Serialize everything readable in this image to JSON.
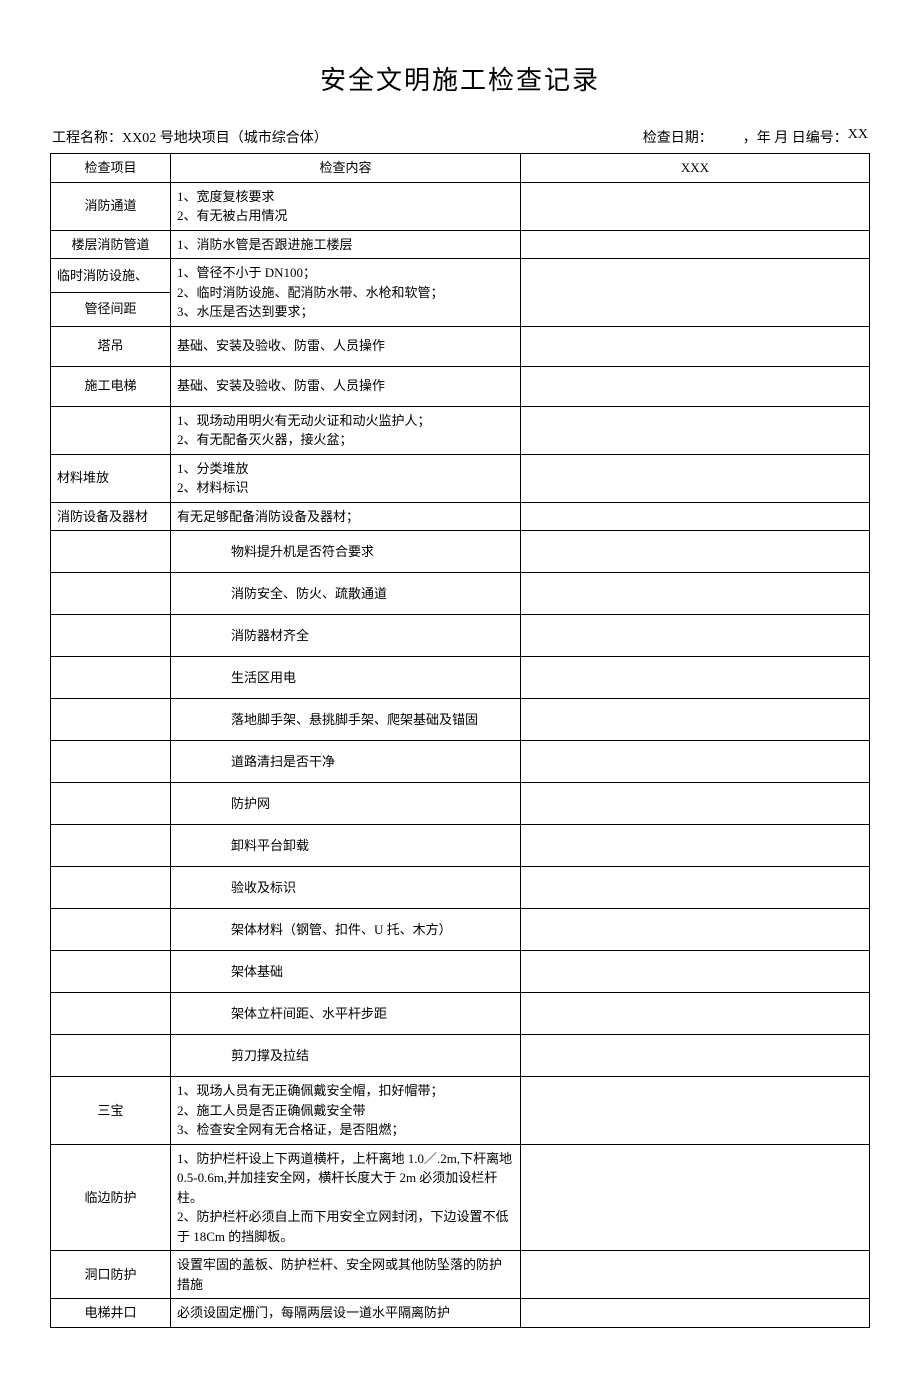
{
  "title": "安全文明施工检查记录",
  "header": {
    "proj_label": "工程名称：",
    "proj_name": "XX02 号地块项目（城市综合体）",
    "date_label": "检查日期：",
    "date_val": "，年 月 日",
    "serial_label": " 编号：",
    "serial_val": "XX"
  },
  "cols": {
    "c1": "检查项目",
    "c2": "检查内容",
    "c3": "XXX"
  },
  "rows": [
    {
      "item": "消防通道",
      "content": "1、宽度复核要求\n2、有无被占用情况",
      "cls": ""
    },
    {
      "item": "楼层消防管道",
      "content": "1、消防水管是否跟进施工楼层",
      "cls": ""
    },
    {
      "item": "临时消防设施、",
      "content": "1、管径不小于 DN100；\n2、临时消防设施、配消防水带、水枪和软管；\n3、水压是否达到要求；",
      "cls": "col1-left",
      "rowspan2": true
    },
    {
      "item": "管径间距",
      "cls": ""
    },
    {
      "item": "塔吊",
      "content": "基础、安装及验收、防雷、人员操作",
      "cls": "taller"
    },
    {
      "item": "施工电梯",
      "content": "基础、安装及验收、防雷、人员操作",
      "cls": "taller"
    },
    {
      "item": "",
      "content": "1、现场动用明火有无动火证和动火监护人；\n2、有无配备灭火器，接火盆；",
      "cls": ""
    },
    {
      "item": "材料堆放",
      "content": "1、分类堆放\n2、材料标识",
      "cls": "col1-left"
    },
    {
      "item": "消防设备及器材",
      "content": "有无足够配备消防设备及器材；",
      "cls": "col1-left"
    },
    {
      "item": "",
      "content": "物料提升机是否符合要求",
      "cls": "col2-indent"
    },
    {
      "item": "",
      "content": "消防安全、防火、疏散通道",
      "cls": "col2-indent"
    },
    {
      "item": "",
      "content": "消防器材齐全",
      "cls": "col2-indent"
    },
    {
      "item": "",
      "content": "生活区用电",
      "cls": "col2-indent"
    },
    {
      "item": "",
      "content": "落地脚手架、悬挑脚手架、爬架基础及锚固",
      "cls": "col2-indent"
    },
    {
      "item": "",
      "content": "道路清扫是否干净",
      "cls": "col2-indent"
    },
    {
      "item": "",
      "content": "防护网",
      "cls": "col2-indent"
    },
    {
      "item": "",
      "content": "卸料平台卸载",
      "cls": "col2-indent"
    },
    {
      "item": "",
      "content": "验收及标识",
      "cls": "col2-indent"
    },
    {
      "item": "",
      "content": "架体材料（钢管、扣件、U 托、木方）",
      "cls": "col2-indent"
    },
    {
      "item": "",
      "content": "架体基础",
      "cls": "col2-indent"
    },
    {
      "item": "",
      "content": "架体立杆间距、水平杆步距",
      "cls": "col2-indent"
    },
    {
      "item": "",
      "content": "剪刀撑及拉结",
      "cls": "col2-indent"
    },
    {
      "item": "三宝",
      "content": "1、现场人员有无正确佩戴安全帽，扣好帽带；\n2、施工人员是否正确佩戴安全带\n3、检查安全网有无合格证，是否阻燃；",
      "cls": ""
    },
    {
      "item": "临边防护",
      "content": "1、防护栏杆设上下两道横杆，上杆离地 1.0／.2m,下杆离地 0.5-0.6m,并加挂安全网，横杆长度大于 2m 必须加设栏杆柱。\n2、防护栏杆必须自上而下用安全立网封闭，下边设置不低于 18Cm 的挡脚板。",
      "cls": ""
    },
    {
      "item": "洞口防护",
      "content": "设置牢固的盖板、防护栏杆、安全网或其他防坠落的防护措施",
      "cls": ""
    },
    {
      "item": "电梯井口",
      "content": "必须设固定栅门，每隔两层设一道水平隔离防护",
      "cls": ""
    }
  ]
}
